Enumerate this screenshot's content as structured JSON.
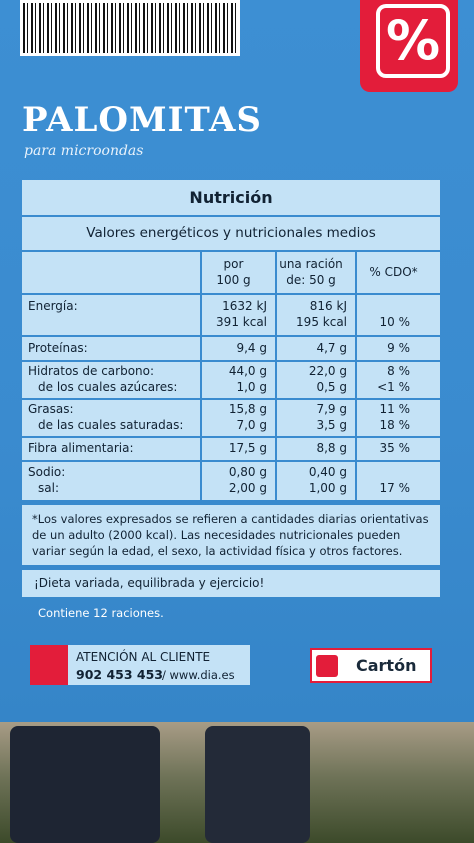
{
  "header": {
    "logo": "%",
    "title": "PALOMITAS",
    "subtitle": "para microondas"
  },
  "table": {
    "title": "Nutrición",
    "subtitle": "Valores energéticos y nutricionales medios",
    "head": [
      [
        null,
        "por",
        "una ración",
        null
      ],
      [
        null,
        "100 g",
        "de: 50 g",
        "% CDO*"
      ]
    ],
    "rows": [
      {
        "lines": [
          [
            "Energía:",
            "1632 kJ",
            "816 kJ",
            null
          ],
          [
            null,
            "391 kcal",
            "195 kcal",
            "10 %"
          ]
        ]
      },
      {
        "lines": [
          [
            "Proteínas:",
            "9,4 g",
            "4,7 g",
            "9 %"
          ]
        ]
      },
      {
        "lines": [
          [
            "Hidratos de carbono:",
            "44,0 g",
            "22,0 g",
            "8 %"
          ],
          [
            "de los cuales azúcares:",
            "1,0 g",
            "0,5 g",
            "<1 %"
          ]
        ]
      },
      {
        "lines": [
          [
            "Grasas:",
            "15,8 g",
            "7,9 g",
            "11 %"
          ],
          [
            "de las cuales saturadas:",
            "7,0 g",
            "3,5 g",
            "18 %"
          ]
        ]
      },
      {
        "lines": [
          [
            "Fibra alimentaria:",
            "17,5 g",
            "8,8 g",
            "35 %"
          ]
        ]
      },
      {
        "lines": [
          [
            "Sodio:",
            "0,80 g",
            "0,40 g",
            null
          ],
          [
            "sal:",
            "2,00 g",
            "1,00 g",
            "17 %"
          ]
        ]
      }
    ]
  },
  "footnote": "*Los valores expresados se refieren a cantidades diarias orientativas de un adulto (2000 kcal). Las necesidades nutricionales pueden variar según la edad, el sexo, la actividad física y otros factores.",
  "slogan": "¡Dieta variada, equilibrada y ejercicio!",
  "servings": "Contiene 12 raciones.",
  "contact": {
    "label": "ATENCIÓN AL CLIENTE",
    "phone": "902 453 453",
    "web": "/ www.dia.es"
  },
  "material": "Cartón"
}
